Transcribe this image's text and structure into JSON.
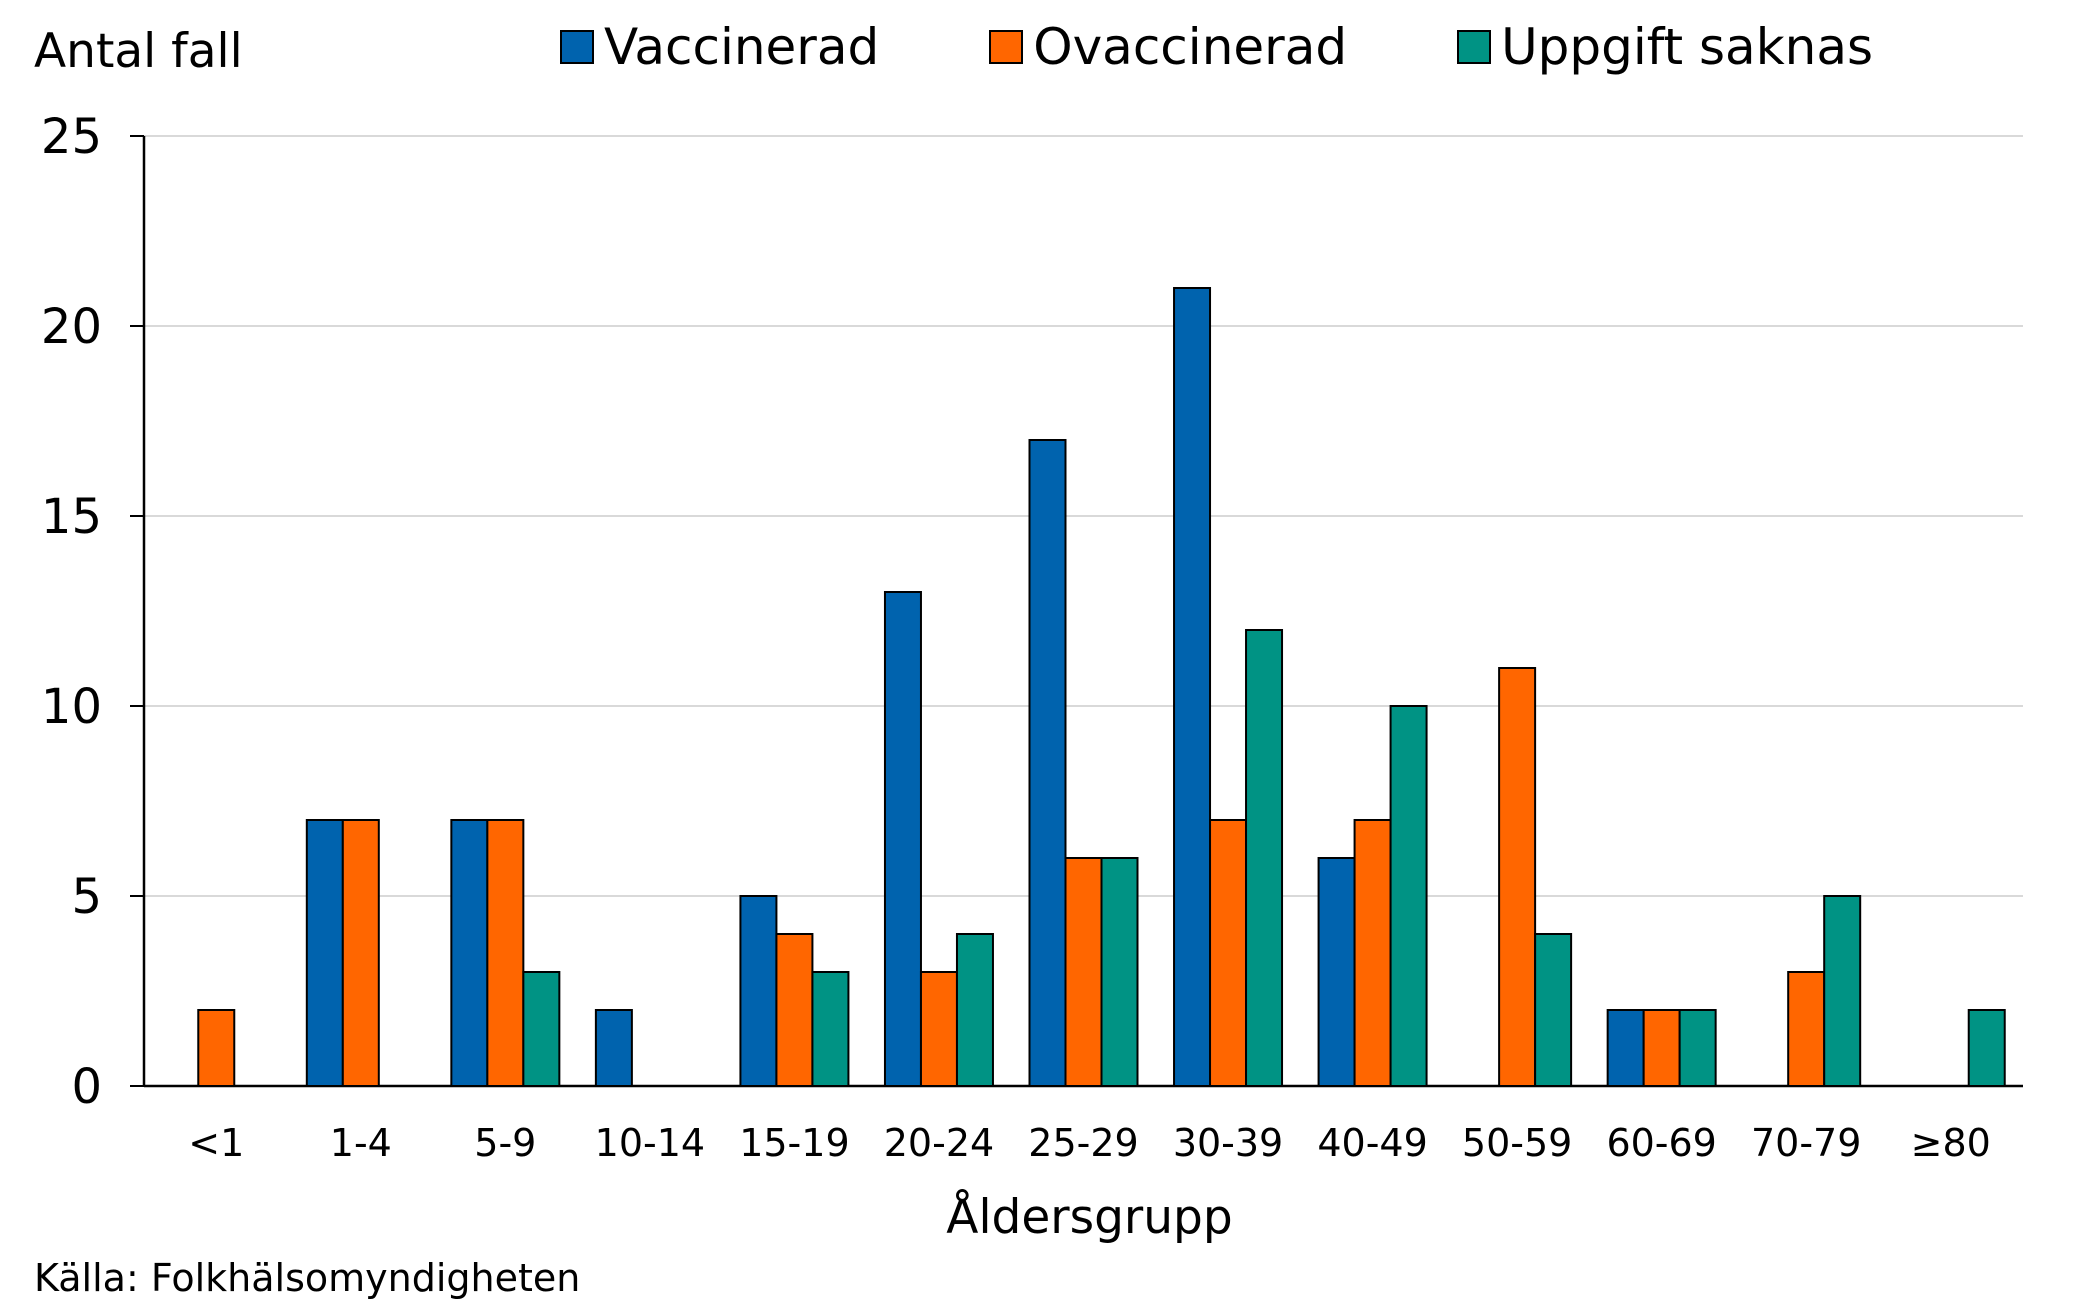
{
  "chart_data": {
    "type": "bar",
    "title": "",
    "ylabel": "Antal fall",
    "xlabel": "Åldersgrupp",
    "ylim": [
      0,
      25
    ],
    "yticks": [
      0,
      5,
      10,
      15,
      20,
      25
    ],
    "grid": true,
    "legend_position": "top",
    "categories": [
      "<1",
      "1-4",
      "5-9",
      "10-14",
      "15-19",
      "20-24",
      "25-29",
      "30-39",
      "40-49",
      "50-59",
      "60-69",
      "70-79",
      "≥80"
    ],
    "series": [
      {
        "name": "Vaccinerad",
        "color": "#0063AE",
        "values": [
          0,
          7,
          7,
          2,
          5,
          13,
          17,
          21,
          6,
          0,
          2,
          0,
          0
        ]
      },
      {
        "name": "Ovaccinerad",
        "color": "#FF6600",
        "values": [
          2,
          7,
          7,
          0,
          4,
          3,
          6,
          7,
          7,
          11,
          2,
          3,
          0
        ]
      },
      {
        "name": "Uppgift saknas",
        "color": "#009384",
        "values": [
          0,
          0,
          3,
          0,
          3,
          4,
          6,
          12,
          10,
          4,
          2,
          5,
          2
        ]
      }
    ]
  },
  "source": "Källa: Folkhälsomyndigheten"
}
